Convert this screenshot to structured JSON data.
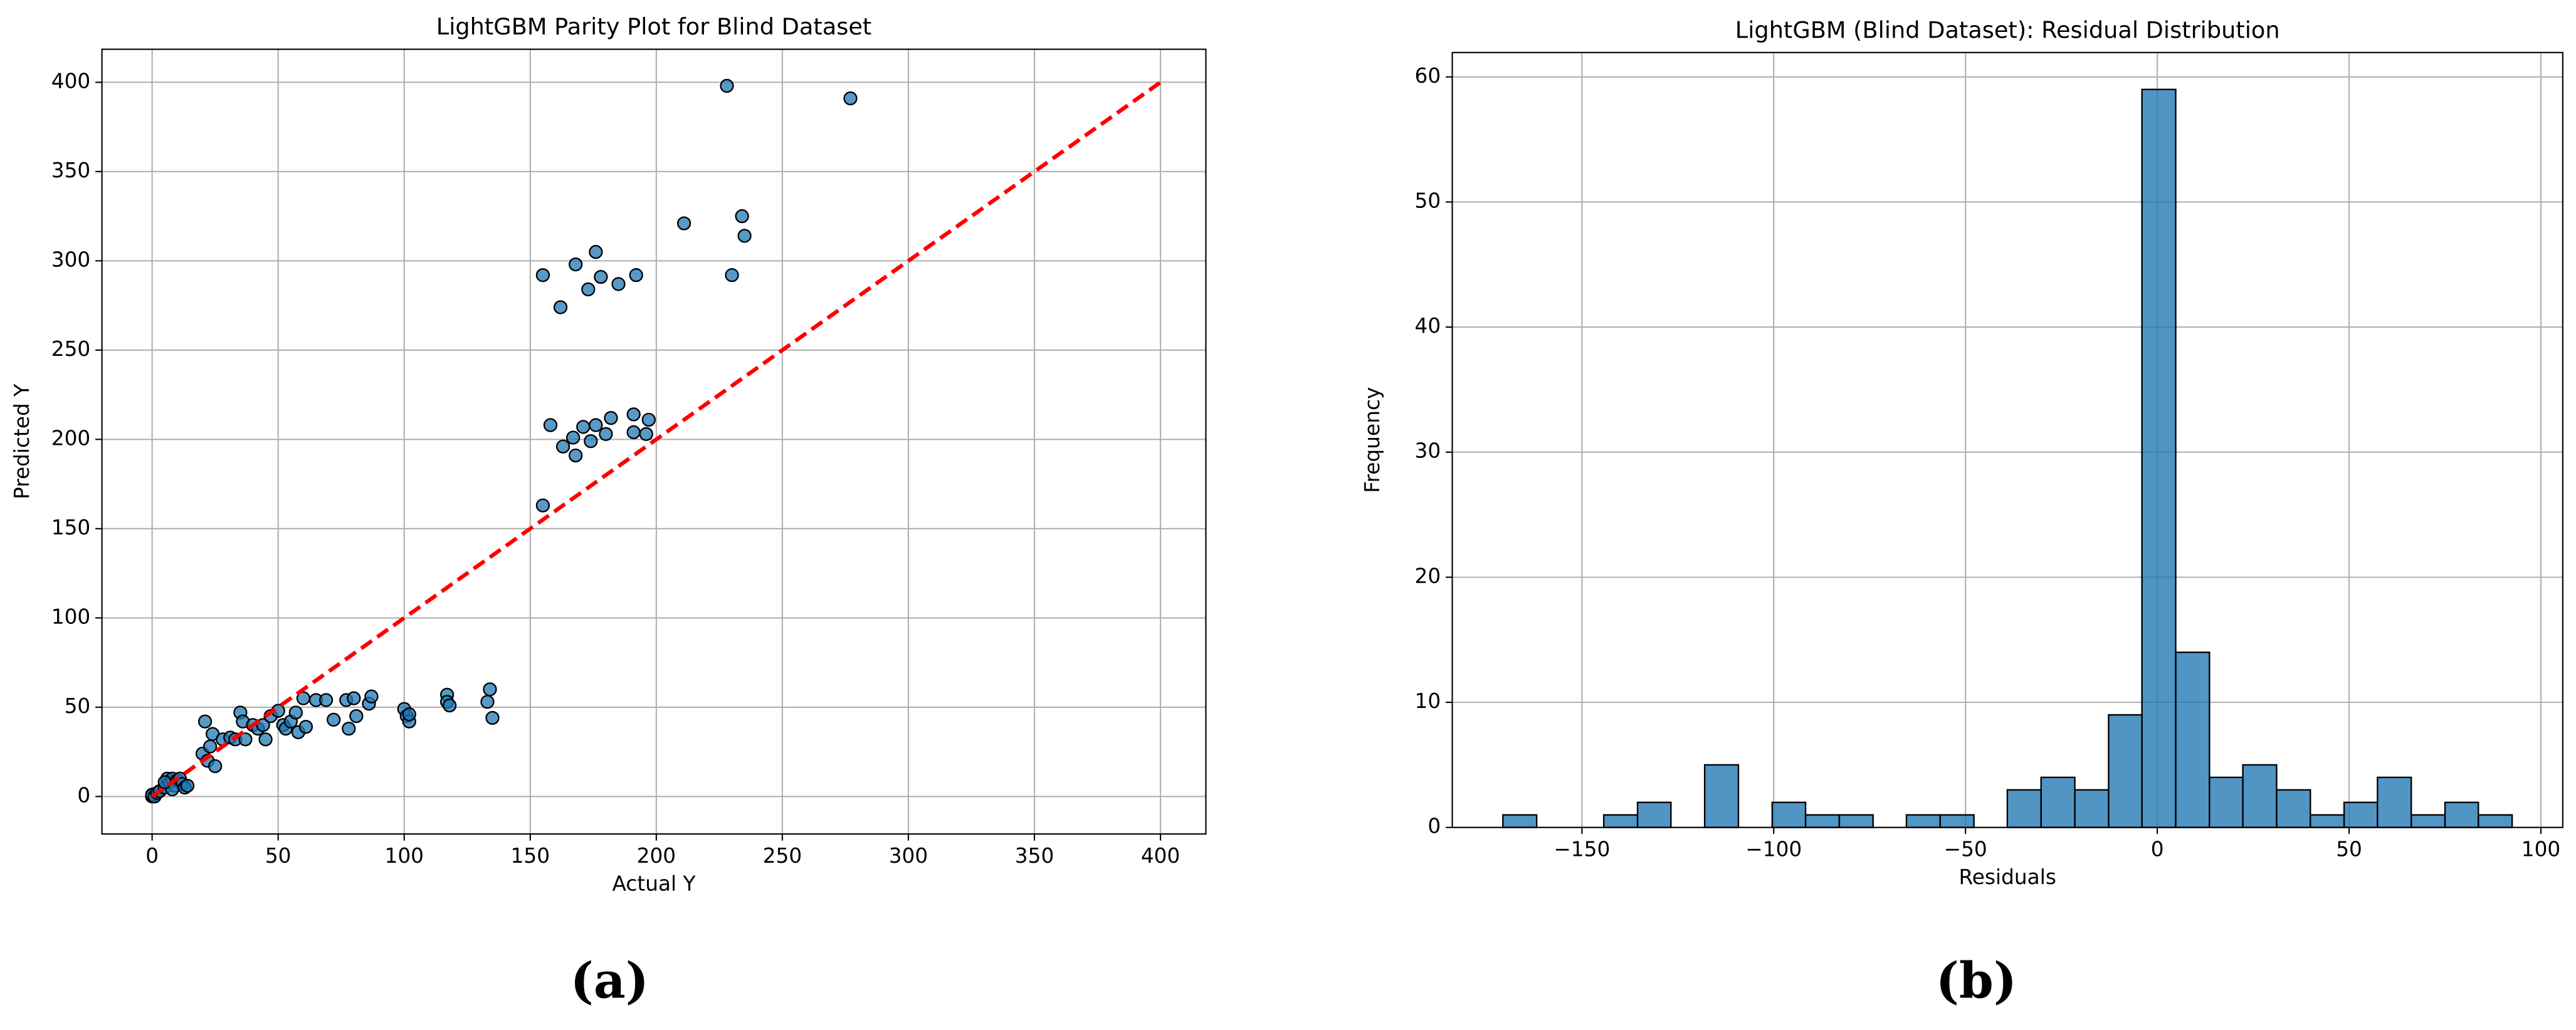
{
  "chart_data": [
    {
      "type": "scatter",
      "title": "LightGBM Parity Plot for Blind Dataset",
      "xlabel": "Actual Y",
      "ylabel": "Predicted Y",
      "caption": "(a)",
      "x": [
        0,
        0,
        1,
        2,
        3,
        5,
        6,
        7,
        8,
        9,
        10,
        11,
        12,
        13,
        14,
        8,
        5,
        20,
        21,
        22,
        23,
        24,
        25,
        28,
        31,
        33,
        35,
        36,
        37,
        40,
        42,
        44,
        45,
        47,
        50,
        52,
        53,
        55,
        57,
        58,
        60,
        61,
        65,
        69,
        72,
        77,
        78,
        80,
        81,
        86,
        87,
        100,
        101,
        102,
        102,
        117,
        117,
        118,
        133,
        134,
        135,
        155,
        158,
        163,
        167,
        168,
        171,
        174,
        176,
        180,
        182,
        191,
        191,
        196,
        197,
        155,
        162,
        168,
        173,
        176,
        178,
        185,
        192,
        211,
        228,
        230,
        234,
        235,
        277
      ],
      "y": [
        0,
        1,
        0,
        2,
        3,
        5,
        10,
        8,
        10,
        6,
        9,
        10,
        7,
        5,
        6,
        4,
        8,
        24,
        42,
        20,
        28,
        35,
        17,
        32,
        33,
        32,
        47,
        42,
        32,
        40,
        38,
        40,
        32,
        45,
        48,
        40,
        38,
        42,
        47,
        36,
        55,
        39,
        54,
        54,
        43,
        54,
        38,
        55,
        45,
        52,
        56,
        49,
        45,
        42,
        46,
        57,
        53,
        51,
        53,
        60,
        44,
        163,
        208,
        196,
        201,
        191,
        207,
        199,
        208,
        203,
        212,
        214,
        204,
        203,
        211,
        292,
        274,
        298,
        284,
        305,
        291,
        287,
        292,
        321,
        398,
        292,
        325,
        314,
        391
      ],
      "color": "#1f77b4",
      "reference_line": {
        "x": [
          0,
          400
        ],
        "y": [
          0,
          400
        ],
        "color": "#ff0000"
      },
      "xlim": [
        -19.9,
        418
      ],
      "ylim": [
        -21,
        418.5
      ],
      "xticks": [
        0,
        50,
        100,
        150,
        200,
        250,
        300,
        350,
        400
      ],
      "yticks": [
        0,
        50,
        100,
        150,
        200,
        250,
        300,
        350,
        400
      ],
      "grid": true
    },
    {
      "type": "histogram",
      "title": "LightGBM (Blind Dataset): Residual Distribution",
      "xlabel": "Residuals",
      "ylabel": "Frequency",
      "caption": "(b)",
      "bins": [
        -170.6,
        -161.8,
        -153.1,
        -144.3,
        -135.5,
        -126.8,
        -118.0,
        -109.2,
        -100.4,
        -91.7,
        -82.9,
        -74.1,
        -65.4,
        -56.6,
        -47.8,
        -39.1,
        -30.3,
        -21.5,
        -12.7,
        -4.0,
        4.8,
        13.6,
        22.3,
        31.1,
        39.9,
        48.7,
        57.4,
        66.2,
        75.0,
        83.7,
        92.5
      ],
      "counts": [
        1,
        0,
        0,
        1,
        2,
        0,
        5,
        0,
        2,
        1,
        1,
        0,
        1,
        1,
        0,
        3,
        4,
        3,
        9,
        59,
        14,
        4,
        5,
        3,
        1,
        2,
        4,
        1,
        2,
        1
      ],
      "color": "#1f77b4",
      "xlim": [
        -183.8,
        105.7
      ],
      "ylim": [
        0,
        61.95
      ],
      "xticks": [
        {
          "value": -150,
          "label": "−150"
        },
        {
          "value": -100,
          "label": "−100"
        },
        {
          "value": -50,
          "label": "−50"
        },
        0,
        50,
        100
      ],
      "yticks": [
        0,
        10,
        20,
        30,
        40,
        50,
        60
      ],
      "grid": true
    }
  ]
}
